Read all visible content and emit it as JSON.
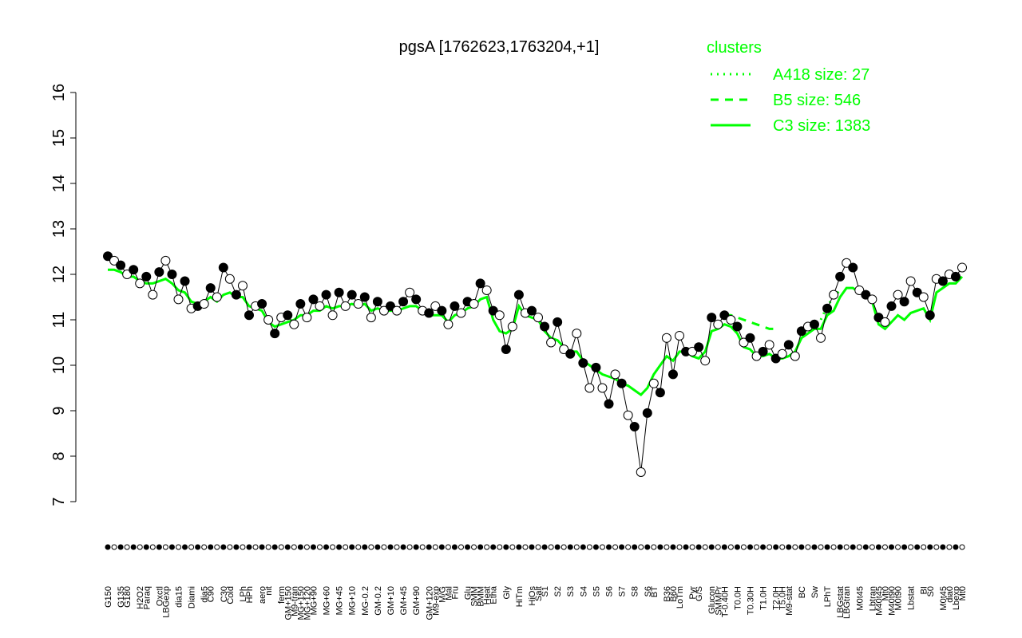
{
  "chart_data": {
    "type": "line",
    "title": "pgsA [1762623,1763204,+1]",
    "legend_title": "clusters",
    "legend_color": "#00ff00",
    "ylim": [
      7,
      16
    ],
    "yticks": [
      7,
      8,
      9,
      10,
      11,
      12,
      13,
      14,
      15,
      16
    ],
    "categories": [
      "G150",
      null,
      "G135",
      "G180",
      null,
      "H2O2",
      "Paraq",
      null,
      "Oxctl",
      "LBGexp",
      null,
      "dia15",
      null,
      "Diami",
      null,
      "dia5",
      "C90",
      null,
      "C30",
      "Cold",
      null,
      "LPh",
      "HPh",
      null,
      "aero",
      "nit",
      null,
      "ferm",
      "GM+150",
      "M9-tran",
      "MG+150",
      "MG+120",
      "MG+90",
      null,
      "MG+60",
      null,
      "MG+45",
      null,
      "MG+10",
      null,
      "MG-0.2",
      null,
      "GM-0.2",
      null,
      "GM+10",
      null,
      "GM+45",
      null,
      "GM+90",
      null,
      "GM+120",
      "M9-exp",
      "M/G",
      "Mal",
      "Fru",
      null,
      "Glu",
      "SMM",
      "BMM",
      "Heat",
      "Etha",
      null,
      "Gly",
      null,
      "HiTm",
      null,
      "HiOs",
      "Salt",
      "S1",
      null,
      "S2",
      null,
      "S3",
      null,
      "S4",
      null,
      "S5",
      null,
      "S6",
      null,
      "S7",
      null,
      "S8",
      null,
      "S6",
      "BT",
      null,
      "B36",
      "B60",
      "LoTm",
      null,
      "Pyr",
      "G/S",
      null,
      "Glucon",
      "SMMPr",
      "T-0.40H",
      null,
      "T0.0H",
      null,
      "T0.30H",
      null,
      "T1.0H",
      null,
      "T2.0H",
      "T5.0H",
      "M9-stat",
      null,
      "BC",
      null,
      "Sw",
      null,
      "LPhT",
      null,
      "LBGstat",
      "LBGtran",
      null,
      "M0t45",
      null,
      "Lbtran",
      "M40t45",
      "Mt0",
      "M40t90",
      "M0t90",
      null,
      "Lbstat",
      null,
      "BI",
      "S0",
      null,
      "M0t45",
      "dia0",
      "Lbexp",
      "Mt0"
    ],
    "values": [
      12.4,
      12.3,
      12.2,
      12.0,
      12.1,
      11.8,
      11.95,
      11.55,
      12.05,
      12.3,
      12.0,
      11.45,
      11.85,
      11.25,
      11.3,
      11.35,
      11.7,
      11.5,
      12.15,
      11.9,
      11.55,
      11.75,
      11.1,
      11.3,
      11.35,
      11.0,
      10.7,
      11.05,
      11.1,
      10.9,
      11.35,
      11.05,
      11.45,
      11.3,
      11.55,
      11.1,
      11.6,
      11.3,
      11.55,
      11.35,
      11.5,
      11.05,
      11.4,
      11.2,
      11.3,
      11.2,
      11.4,
      11.6,
      11.45,
      11.2,
      11.15,
      11.3,
      11.2,
      10.9,
      11.3,
      11.15,
      11.4,
      11.35,
      11.8,
      11.65,
      11.2,
      11.1,
      10.35,
      10.85,
      11.55,
      11.15,
      11.2,
      11.05,
      10.85,
      10.5,
      10.95,
      10.35,
      10.25,
      10.7,
      10.05,
      9.5,
      9.95,
      9.5,
      9.15,
      9.8,
      9.6,
      8.9,
      8.65,
      7.65,
      8.95,
      9.6,
      9.4,
      10.6,
      9.8,
      10.65,
      10.3,
      10.3,
      10.4,
      10.1,
      11.05,
      10.9,
      11.1,
      11.0,
      10.85,
      10.5,
      10.6,
      10.2,
      10.3,
      10.45,
      10.15,
      10.25,
      10.45,
      10.2,
      10.75,
      10.85,
      10.9,
      10.6,
      11.25,
      11.55,
      11.95,
      12.25,
      12.15,
      11.65,
      11.55,
      11.45,
      11.05,
      10.95,
      11.3,
      11.55,
      11.4,
      11.85,
      11.6,
      11.5,
      11.1,
      11.9,
      11.85,
      12.0,
      11.95,
      12.15
    ],
    "series": [
      {
        "name": "A418 size: 27",
        "color": "#00ff00",
        "x": [
          112,
          113,
          114,
          115
        ],
        "values": [
          11.0,
          11.3,
          11.5,
          11.65
        ]
      },
      {
        "name": "B5 size: 546",
        "color": "#00ff00",
        "x": [
          97,
          98,
          99,
          100,
          101,
          102,
          103,
          104,
          105
        ],
        "values": [
          11.1,
          11.1,
          11.05,
          11.0,
          10.95,
          10.9,
          10.85,
          10.8,
          10.8
        ]
      },
      {
        "name": "C3 size: 1383",
        "color": "#00ff00",
        "values": [
          12.1,
          12.1,
          12.05,
          11.95,
          11.95,
          11.85,
          11.8,
          11.8,
          11.85,
          11.9,
          11.8,
          11.65,
          11.6,
          11.4,
          11.35,
          11.4,
          11.5,
          11.4,
          11.55,
          11.6,
          11.5,
          11.5,
          11.3,
          11.25,
          11.2,
          10.95,
          10.85,
          10.9,
          10.95,
          11.0,
          11.1,
          11.1,
          11.2,
          11.2,
          11.3,
          11.25,
          11.3,
          11.3,
          11.35,
          11.3,
          11.35,
          11.2,
          11.25,
          11.2,
          11.2,
          11.2,
          11.25,
          11.3,
          11.3,
          11.2,
          11.1,
          11.1,
          11.1,
          10.95,
          11.1,
          11.15,
          11.25,
          11.3,
          11.45,
          11.5,
          11.0,
          10.75,
          10.7,
          10.8,
          11.3,
          11.1,
          11.05,
          11.0,
          10.75,
          10.6,
          10.55,
          10.4,
          10.3,
          10.3,
          10.1,
          10.0,
          9.9,
          9.8,
          9.75,
          9.7,
          9.6,
          9.55,
          9.45,
          9.35,
          9.5,
          9.8,
          10.0,
          10.2,
          10.1,
          10.3,
          10.3,
          10.2,
          10.15,
          10.3,
          10.75,
          10.8,
          10.9,
          10.85,
          10.7,
          10.4,
          10.35,
          10.2,
          10.2,
          10.25,
          10.15,
          10.15,
          10.2,
          10.3,
          10.6,
          10.7,
          10.8,
          10.8,
          11.1,
          11.2,
          11.5,
          11.7,
          11.7,
          11.6,
          11.55,
          11.4,
          10.9,
          10.8,
          10.95,
          11.1,
          11.0,
          11.15,
          11.2,
          11.25,
          11.0,
          11.6,
          11.7,
          11.8,
          11.8,
          11.95
        ]
      }
    ]
  }
}
